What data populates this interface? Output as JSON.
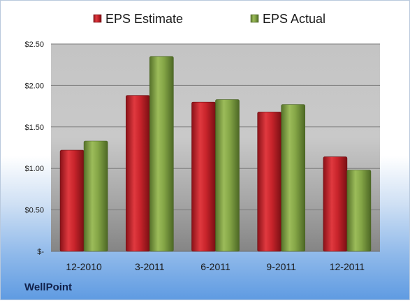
{
  "chart_data": {
    "type": "bar",
    "categories": [
      "12-2010",
      "3-2011",
      "6-2011",
      "9-2011",
      "12-2011"
    ],
    "series": [
      {
        "name": "EPS Estimate",
        "values": [
          1.22,
          1.88,
          1.8,
          1.68,
          1.14
        ],
        "color": "#c0262c"
      },
      {
        "name": "EPS Actual",
        "values": [
          1.33,
          2.35,
          1.83,
          1.77,
          0.98
        ],
        "color": "#7a9a3c"
      }
    ],
    "ylim": [
      0,
      2.5
    ],
    "yticks": [
      0,
      0.5,
      1.0,
      1.5,
      2.0,
      2.5
    ],
    "ytick_labels": [
      "$-",
      "$0.50",
      "$1.00",
      "$1.50",
      "$2.00",
      "$2.50"
    ],
    "legend_position": "top",
    "grid": true
  },
  "company": "WellPoint"
}
